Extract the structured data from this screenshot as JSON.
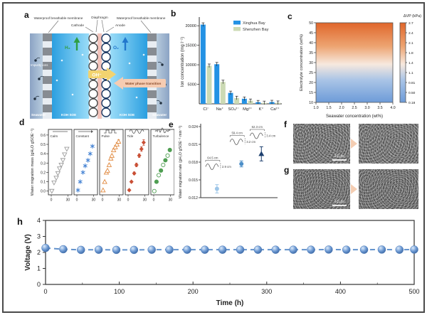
{
  "panel_labels": {
    "a": "a",
    "b": "b",
    "c": "c",
    "d": "d",
    "e": "e",
    "f": "f",
    "g": "g",
    "h": "h"
  },
  "schematic": {
    "membrane": "Waterproof breathable membrane",
    "diaphragm": "Diaphragm",
    "cathode": "Cathode",
    "anode": "Anode",
    "h2": "H₂",
    "o2": "O₂",
    "oh": "OH⁻",
    "water_phase": "Water phase transition",
    "impurity": "Impurity ions",
    "seawater": "Seawater",
    "koh": "KOH SOE"
  },
  "sem": {
    "scalebar_f": "10 μm",
    "scalebar_g": "10 μm"
  },
  "chart_data": [
    {
      "id": "b",
      "type": "bar",
      "ylabel": "Ion concentration (mg l⁻¹)",
      "ylim": [
        0,
        21500
      ],
      "yticks": [
        5000,
        10000,
        15000,
        20000
      ],
      "categories": [
        "Cl⁻",
        "Na⁺",
        "SO₄²⁻",
        "Mg²⁺",
        "K⁺",
        "Ca²⁺"
      ],
      "series": [
        {
          "name": "Xinghua Bay",
          "color": "#2492e4",
          "values": [
            20300,
            10150,
            2800,
            1300,
            420,
            450
          ]
        },
        {
          "name": "Shenzhen Bay",
          "color": "#ccdab4",
          "values": [
            9750,
            5600,
            1500,
            780,
            240,
            280
          ]
        }
      ],
      "legend_position": "top-right"
    },
    {
      "id": "c",
      "type": "heatmap",
      "xlabel": "Seawater concentration (wt%)",
      "ylabel": "Electrolyte concentration (wt%)",
      "xlim": [
        1.0,
        4.0
      ],
      "ylim": [
        10,
        50
      ],
      "xticks": [
        "1.0",
        "1.5",
        "2.0",
        "2.5",
        "3.0",
        "3.5",
        "4.0"
      ],
      "yticks": [
        10,
        15,
        20,
        25,
        30,
        35,
        40,
        45,
        50
      ],
      "colorbar_label": "ΔVP (kPa)",
      "colorbar_ticks": [
        "2.7",
        "2.4",
        "2.1",
        "1.8",
        "1.4",
        "1.1",
        "0.81",
        "0.50",
        "0.18"
      ],
      "gradient": {
        "stops": [
          0,
          0.3,
          0.52,
          0.72,
          1
        ],
        "colors": [
          "#e0662a",
          "#eda573",
          "#f7e9de",
          "#a9c4e6",
          "#6d9bd8"
        ]
      },
      "description": "ΔVP increases with electrolyte concentration, nearly independent of seawater concentration"
    },
    {
      "id": "d",
      "type": "scatter",
      "multi_panel": true,
      "ylabel": "Water migration mass (gH₂O gSOE⁻¹)",
      "xlim": [
        0,
        32
      ],
      "xticks": [
        0,
        30
      ],
      "ylim": [
        -0.04,
        0.66
      ],
      "yticks": [
        0.0,
        0.1,
        0.2,
        0.3,
        0.4,
        0.5,
        0.6
      ],
      "panels": [
        {
          "label": "Calm",
          "icon": "flat-line",
          "color": "#9b9b9b",
          "marker": "tri-down",
          "x": [
            1,
            5,
            9,
            12,
            15,
            18,
            21,
            24,
            28
          ],
          "y": [
            0.0,
            0.09,
            0.14,
            0.19,
            0.24,
            0.28,
            0.33,
            0.39,
            0.45
          ]
        },
        {
          "label": "Constant",
          "icon": "arrow-line",
          "color": "#3f7fd2",
          "marker": "star",
          "x": [
            2,
            6,
            11,
            15,
            20,
            24,
            28
          ],
          "y": [
            0.01,
            0.1,
            0.2,
            0.27,
            0.33,
            0.4,
            0.48
          ]
        },
        {
          "label": "Pulse",
          "icon": "square-wave",
          "color": "#e0893f",
          "marker": "tri-up",
          "x": [
            1,
            4,
            7,
            9,
            12,
            15,
            17,
            20,
            23,
            26,
            29
          ],
          "y": [
            0.01,
            0.1,
            0.2,
            0.22,
            0.28,
            0.35,
            0.38,
            0.44,
            0.47,
            0.5,
            0.53
          ],
          "err": [
            0,
            0,
            0,
            0,
            0.01,
            0.015,
            0.01,
            0.015,
            0.02,
            0.02,
            0.02
          ]
        },
        {
          "label": "Tide",
          "icon": "sine-wave",
          "color": "#c94f35",
          "marker": "diamond",
          "x": [
            2,
            6,
            11,
            15,
            20,
            24,
            28
          ],
          "y": [
            0.01,
            0.1,
            0.19,
            0.28,
            0.38,
            0.45,
            0.52
          ],
          "err": [
            0,
            0.01,
            0.015,
            0.02,
            0.02,
            0.025,
            0.03
          ]
        },
        {
          "label": "Turbulence",
          "icon": "turbulent-wave",
          "color": "#4f9e52",
          "marker": "circle-alt",
          "x": [
            1,
            5,
            9,
            13,
            17,
            21,
            25,
            29
          ],
          "y": [
            0.0,
            0.1,
            0.17,
            0.22,
            0.28,
            0.33,
            0.38,
            0.44
          ]
        }
      ]
    },
    {
      "id": "e",
      "type": "scatter",
      "ylabel": "Water migration rate (gH₂O gSOE⁻¹ min⁻¹)",
      "ylim": [
        0.012,
        0.024
      ],
      "yticks": [
        "0.012",
        "0.015",
        "0.018",
        "0.021",
        "0.024"
      ],
      "points": [
        {
          "y": 0.0135,
          "err": 0.0007,
          "color": "#9ec6e8",
          "marker": "circle",
          "wavelength": "64.5 cm",
          "amplitude": "2.9 cm"
        },
        {
          "y": 0.0177,
          "err": 0.0005,
          "color": "#4d8fc8",
          "marker": "circle",
          "wavelength": "59.4 cm",
          "amplitude": "3.2 cm"
        },
        {
          "y": 0.0194,
          "err": 0.0012,
          "color": "#1d3f6e",
          "marker": "triangle",
          "wavelength": "62.3 cm",
          "amplitude": "3.4 cm"
        }
      ]
    },
    {
      "id": "h",
      "type": "line",
      "xlabel": "Time (h)",
      "ylabel": "Voltage (V)",
      "xlim": [
        0,
        500
      ],
      "ylim": [
        0,
        4
      ],
      "xticks": [
        0,
        100,
        200,
        300,
        400,
        500
      ],
      "yticks": [
        0,
        1,
        2,
        3,
        4
      ],
      "line_color": "#6292cc",
      "line_style": "dashed",
      "marker": "sphere",
      "x": [
        0,
        24,
        48,
        72,
        96,
        120,
        144,
        168,
        192,
        216,
        240,
        264,
        288,
        312,
        336,
        360,
        384,
        408,
        432,
        456,
        480,
        500
      ],
      "y": [
        2.28,
        2.2,
        2.16,
        2.17,
        2.16,
        2.16,
        2.17,
        2.17,
        2.17,
        2.17,
        2.17,
        2.17,
        2.17,
        2.17,
        2.17,
        2.17,
        2.18,
        2.17,
        2.17,
        2.18,
        2.17,
        2.18
      ]
    }
  ]
}
